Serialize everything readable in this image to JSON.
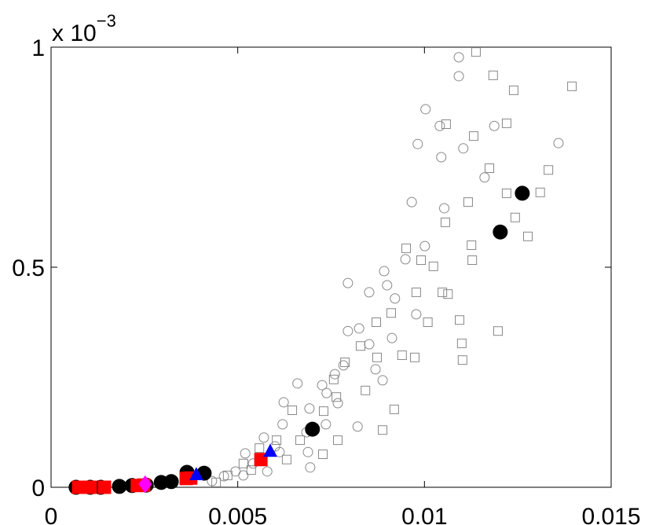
{
  "chart_data": {
    "type": "scatter",
    "y_exponent_base": "x 10",
    "y_exponent": "−3",
    "xlim": [
      0,
      0.015
    ],
    "ylim": [
      0,
      1
    ],
    "xticks": [
      0,
      0.005,
      0.01,
      0.015
    ],
    "yticks": [
      0,
      0.5,
      1
    ],
    "grid": false,
    "series": [
      {
        "marker": "circle",
        "filled": false,
        "color": "#888888",
        "x": [
          0.01092,
          0.01092,
          0.01003,
          0.01041,
          0.00982,
          0.01104,
          0.01045,
          0.01187,
          0.01359,
          0.01161,
          0.00966,
          0.01053,
          0.01001,
          0.00949,
          0.00892,
          0.00795,
          0.00852,
          0.009,
          0.00921,
          0.00978,
          0.00825,
          0.00795,
          0.00852,
          0.00913,
          0.00783,
          0.0076,
          0.00726,
          0.0066,
          0.00623,
          0.00692,
          0.00768,
          0.00821,
          0.00736,
          0.0062,
          0.0057,
          0.00688,
          0.00612,
          0.0052,
          0.00694,
          0.00494,
          0.00463,
          0.00431,
          0.00541,
          0.006,
          0.00738,
          0.00869,
          0.00888,
          0.00684,
          0.00579,
          0.00515
        ],
        "values": [
          0.977,
          0.934,
          0.859,
          0.821,
          0.78,
          0.77,
          0.75,
          0.821,
          0.782,
          0.704,
          0.648,
          0.634,
          0.548,
          0.518,
          0.491,
          0.464,
          0.443,
          0.459,
          0.429,
          0.393,
          0.361,
          0.355,
          0.325,
          0.339,
          0.277,
          0.257,
          0.232,
          0.236,
          0.193,
          0.179,
          0.191,
          0.138,
          0.143,
          0.143,
          0.113,
          0.08,
          0.08,
          0.077,
          0.045,
          0.036,
          0.025,
          0.014,
          0.054,
          0.093,
          0.214,
          0.268,
          0.243,
          0.125,
          0.036,
          0.027
        ]
      },
      {
        "marker": "square",
        "filled": false,
        "color": "#888888",
        "x": [
          0.01138,
          0.01184,
          0.01239,
          0.01395,
          0.01058,
          0.01132,
          0.0122,
          0.01174,
          0.01332,
          0.0122,
          0.0131,
          0.01117,
          0.01056,
          0.01243,
          0.01277,
          0.01126,
          0.00951,
          0.00991,
          0.01024,
          0.01128,
          0.01048,
          0.01063,
          0.00978,
          0.01009,
          0.01094,
          0.011,
          0.01197,
          0.01102,
          0.00911,
          0.00871,
          0.00829,
          0.00873,
          0.0094,
          0.00974,
          0.00787,
          0.00757,
          0.00842,
          0.00919,
          0.0073,
          0.00764,
          0.00888,
          0.00646,
          0.00768,
          0.00728,
          0.00667,
          0.00604,
          0.00558,
          0.00515,
          0.00473,
          0.00442,
          0.00536,
          0.00631
        ],
        "values": [
          0.989,
          0.936,
          0.902,
          0.911,
          0.825,
          0.798,
          0.827,
          0.725,
          0.721,
          0.668,
          0.67,
          0.648,
          0.602,
          0.613,
          0.57,
          0.55,
          0.543,
          0.516,
          0.502,
          0.516,
          0.443,
          0.439,
          0.443,
          0.375,
          0.38,
          0.327,
          0.355,
          0.289,
          0.396,
          0.375,
          0.321,
          0.295,
          0.3,
          0.295,
          0.284,
          0.245,
          0.22,
          0.177,
          0.173,
          0.205,
          0.13,
          0.175,
          0.107,
          0.075,
          0.107,
          0.107,
          0.089,
          0.054,
          0.027,
          0.011,
          0.039,
          0.063
        ]
      },
      {
        "marker": "circle",
        "filled": true,
        "color": "#000000",
        "x": [
          0.00067,
          0.00105,
          0.00133,
          0.00183,
          0.00217,
          0.00255,
          0.00295,
          0.00322,
          0.00364,
          0.0041,
          0.007,
          0.01203,
          0.01262
        ],
        "values": [
          0,
          0,
          0,
          0.002,
          0.004,
          0.005,
          0.011,
          0.013,
          0.034,
          0.032,
          0.132,
          0.58,
          0.668
        ]
      },
      {
        "marker": "square",
        "filled": true,
        "color": "#ff0000",
        "x": [
          0.00074,
          0.00105,
          0.00143,
          0.00231,
          0.00248,
          0.00362,
          0.00374,
          0.00562
        ],
        "values": [
          0,
          0,
          0,
          0.004,
          0.005,
          0.02,
          0.021,
          0.063
        ]
      },
      {
        "marker": "triangle",
        "filled": true,
        "color": "#0000ff",
        "x": [
          0.00389,
          0.00587
        ],
        "values": [
          0.027,
          0.08
        ]
      },
      {
        "marker": "diamond",
        "filled": true,
        "color": "#ff00ff",
        "x": [
          0.00252
        ],
        "values": [
          0.007
        ]
      }
    ]
  }
}
